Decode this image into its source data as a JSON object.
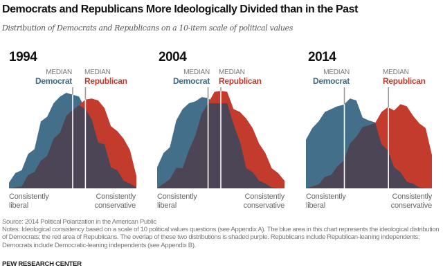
{
  "title": "Democrats and Republicans More Ideologically Divided than in the Past",
  "subtitle": "Distribution of Democrats and Republicans on a 10-item scale of political values",
  "colors": {
    "democrat": "#436f8a",
    "republican": "#c23b2c",
    "overlap": "#4b4556"
  },
  "chart_data": [
    {
      "type": "area",
      "title": "1994",
      "x": [
        0,
        0.5,
        1,
        1.5,
        2,
        2.5,
        3,
        3.5,
        4,
        4.5,
        5,
        5.5,
        6,
        6.5,
        7,
        7.5,
        8,
        8.5,
        9,
        9.5,
        10
      ],
      "series": [
        {
          "name": "Democrat",
          "values": [
            6,
            16,
            19,
            36,
            41,
            70,
            75,
            89,
            96,
            100,
            98,
            96,
            83,
            72,
            48,
            46,
            22,
            19,
            8,
            5,
            1
          ],
          "median": 5.0
        },
        {
          "name": "Republican",
          "values": [
            0,
            1,
            2,
            14,
            17,
            29,
            34,
            52,
            58,
            76,
            82,
            87,
            93,
            94,
            92,
            84,
            65,
            60,
            52,
            40,
            13
          ],
          "median": 6.0
        }
      ]
    },
    {
      "type": "area",
      "title": "2004",
      "x": [
        0,
        0.5,
        1,
        1.5,
        2,
        2.5,
        3,
        3.5,
        4,
        4.5,
        5,
        5.5,
        6,
        6.5,
        7,
        7.5,
        8,
        8.5,
        9,
        9.5,
        10
      ],
      "series": [
        {
          "name": "Democrat",
          "values": [
            22,
            37,
            43,
            71,
            83,
            89,
            91,
            95.5,
            94.5,
            89,
            89,
            89,
            67,
            49,
            21,
            17,
            8,
            5,
            1,
            0,
            0
          ],
          "median": 4.0
        },
        {
          "name": "Republican",
          "values": [
            0,
            5,
            9.5,
            21.5,
            21,
            40,
            55,
            78,
            89,
            101,
            102,
            101,
            83,
            80,
            73,
            63,
            47,
            37,
            21,
            16,
            8
          ],
          "median": 5.0
        }
      ]
    },
    {
      "type": "area",
      "title": "2014",
      "x": [
        0,
        0.5,
        1,
        1.5,
        2,
        2.5,
        3,
        3.5,
        4,
        4.5,
        5,
        5.5,
        6,
        6.5,
        7,
        7.5,
        8,
        8.5,
        9,
        9.5,
        10
      ],
      "series": [
        {
          "name": "Democrat",
          "values": [
            51,
            63,
            70,
            80,
            83,
            86,
            87.5,
            94,
            92,
            74,
            71,
            69,
            46,
            40,
            22,
            17,
            7,
            5,
            1,
            0,
            0
          ],
          "median": 3.05
        },
        {
          "name": "Republican",
          "values": [
            0,
            2,
            4,
            12,
            14,
            23,
            29,
            47,
            54,
            64,
            66,
            68.5,
            80,
            85,
            81.5,
            88,
            86,
            76,
            68,
            63,
            35
          ],
          "median": 6.55
        }
      ]
    }
  ],
  "labels": {
    "median": "MEDIAN",
    "democrat": "Democrat",
    "republican": "Republican",
    "left_axis": [
      "Consistently",
      "liberal"
    ],
    "right_axis": [
      "Consistently",
      "conservative"
    ]
  },
  "footer": {
    "source": "Source: 2014 Political Polarization in the American Public",
    "notes": "Notes: Ideological consistency based on a scale of 10 political values questions (see Appendix A). The blue area in this chart represents the ideological distribution of Democrats; the red area of Republicans. The overlap of these two distributions is shaded purple. Republicans include Republican-leaning independents; Democrats include Democratic-leaning independents (see Appendix B).",
    "brand": "PEW RESEARCH CENTER"
  }
}
